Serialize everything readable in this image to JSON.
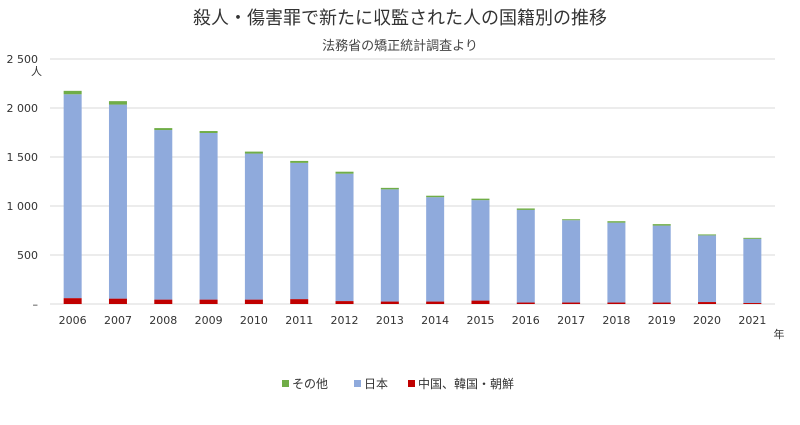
{
  "chart_data": {
    "type": "bar",
    "stacked": true,
    "title": "殺人・傷害罪で新たに収監された人の国籍別の推移",
    "subtitle": "法務省の矯正統計調査より",
    "ylabel": "人",
    "xlabel": "年",
    "ylim": [
      0,
      2500
    ],
    "yticks": [
      "–",
      "500",
      "1 000",
      "1 500",
      "2 000",
      "2 500"
    ],
    "ytick_values": [
      0,
      500,
      1000,
      1500,
      2000,
      2500
    ],
    "grid": true,
    "legend_position": "bottom",
    "categories": [
      "2006",
      "2007",
      "2008",
      "2009",
      "2010",
      "2011",
      "2012",
      "2013",
      "2014",
      "2015",
      "2016",
      "2017",
      "2018",
      "2019",
      "2020",
      "2021"
    ],
    "series": [
      {
        "name": "中国、韓国・朝鮮",
        "color": "#c00000",
        "values": [
          60,
          55,
          45,
          45,
          45,
          50,
          30,
          25,
          25,
          35,
          15,
          15,
          15,
          15,
          20,
          10
        ]
      },
      {
        "name": "日本",
        "color": "#8faadc",
        "values": [
          2080,
          1980,
          1730,
          1700,
          1490,
          1390,
          1300,
          1145,
          1065,
          1025,
          945,
          840,
          815,
          785,
          680,
          655
        ]
      },
      {
        "name": "その他",
        "color": "#70ad47",
        "values": [
          35,
          35,
          20,
          20,
          20,
          20,
          20,
          15,
          15,
          15,
          15,
          10,
          15,
          15,
          10,
          10
        ]
      }
    ],
    "legend_order": [
      "その他",
      "日本",
      "中国、韓国・朝鮮"
    ]
  }
}
